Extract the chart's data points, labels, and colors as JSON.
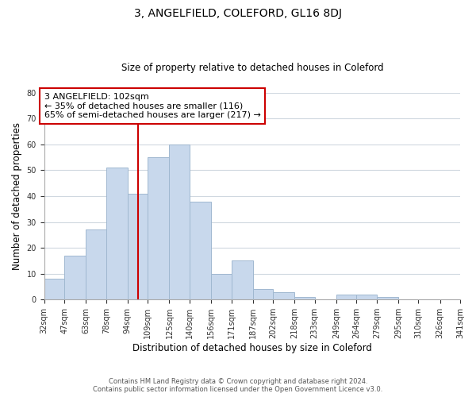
{
  "title": "3, ANGELFIELD, COLEFORD, GL16 8DJ",
  "subtitle": "Size of property relative to detached houses in Coleford",
  "xlabel": "Distribution of detached houses by size in Coleford",
  "ylabel": "Number of detached properties",
  "bins": [
    32,
    47,
    63,
    78,
    94,
    109,
    125,
    140,
    156,
    171,
    187,
    202,
    218,
    233,
    249,
    264,
    279,
    295,
    310,
    326,
    341
  ],
  "bin_labels": [
    "32sqm",
    "47sqm",
    "63sqm",
    "78sqm",
    "94sqm",
    "109sqm",
    "125sqm",
    "140sqm",
    "156sqm",
    "171sqm",
    "187sqm",
    "202sqm",
    "218sqm",
    "233sqm",
    "249sqm",
    "264sqm",
    "279sqm",
    "295sqm",
    "310sqm",
    "326sqm",
    "341sqm"
  ],
  "counts": [
    8,
    17,
    27,
    51,
    41,
    55,
    60,
    38,
    10,
    15,
    4,
    3,
    1,
    0,
    2,
    2,
    1,
    0,
    0,
    0
  ],
  "bar_color": "#c8d8ec",
  "bar_edge_color": "#a0b8d0",
  "vline_x": 102,
  "vline_color": "#cc0000",
  "annotation_text": "3 ANGELFIELD: 102sqm\n← 35% of detached houses are smaller (116)\n65% of semi-detached houses are larger (217) →",
  "annotation_box_color": "white",
  "annotation_box_edge": "#cc0000",
  "ylim": [
    0,
    80
  ],
  "yticks": [
    0,
    10,
    20,
    30,
    40,
    50,
    60,
    70,
    80
  ],
  "grid_color": "#d0d8e0",
  "background_color": "white",
  "footer_line1": "Contains HM Land Registry data © Crown copyright and database right 2024.",
  "footer_line2": "Contains public sector information licensed under the Open Government Licence v3.0."
}
